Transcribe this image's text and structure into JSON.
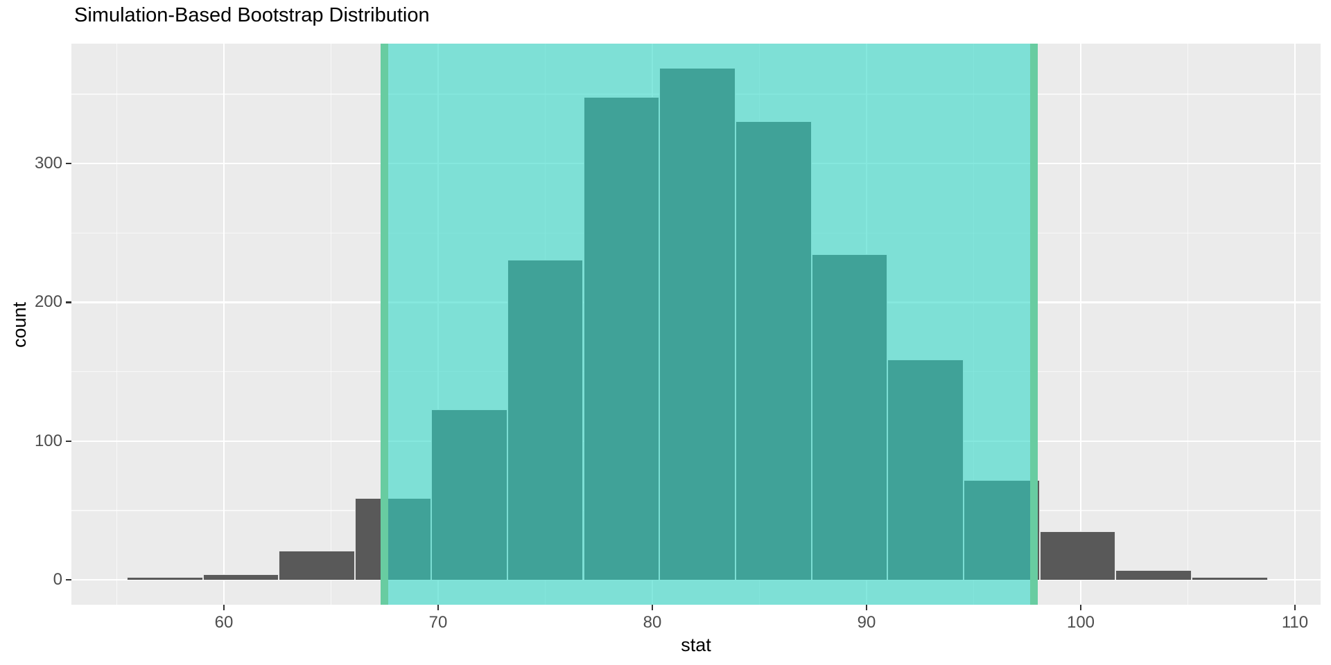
{
  "chart_data": {
    "type": "bar",
    "subtype": "histogram",
    "title": "Simulation-Based Bootstrap Distribution",
    "xlabel": "stat",
    "ylabel": "count",
    "grid": true,
    "legend": false,
    "bin_width": 3.55,
    "bins": {
      "starts": [
        55.47,
        59.02,
        62.57,
        66.13,
        69.68,
        73.23,
        76.78,
        80.33,
        83.88,
        87.43,
        90.98,
        94.53,
        98.08,
        101.63,
        105.18
      ],
      "counts": [
        1,
        3,
        20,
        58,
        122,
        230,
        347,
        368,
        330,
        234,
        158,
        71,
        34,
        6,
        1
      ]
    },
    "confidence_interval": {
      "lower": 67.5,
      "upper": 97.8
    },
    "x_ticks": [
      60,
      70,
      80,
      90,
      100,
      110
    ],
    "x_minor_ticks": [
      55,
      65,
      75,
      85,
      95,
      105
    ],
    "y_ticks": [
      0,
      100,
      200,
      300
    ],
    "y_minor_ticks": [
      50,
      150,
      250,
      350
    ],
    "xlim": [
      52.9,
      111.2
    ],
    "ylim": [
      0,
      386
    ],
    "colors": {
      "bar_fill": "#595959",
      "ci_region_fill": "rgba(46,216,199,0.58)",
      "ci_line": "#68CCA1",
      "panel_background": "#EBEBEB",
      "gridline": "#FFFFFF",
      "axis_text": "#4D4D4D",
      "title_text": "#000000",
      "tick_mark": "#333333"
    }
  }
}
